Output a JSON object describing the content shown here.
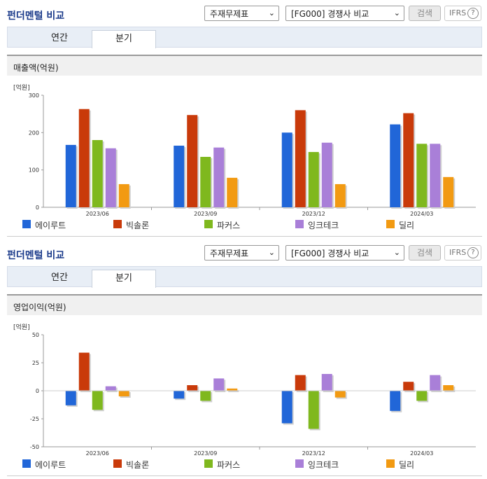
{
  "header": {
    "title": "펀더멘털 비교",
    "select1": "주재무제표",
    "select2": "[FG000] 경쟁사 비교",
    "search_label": "검색",
    "ifrs_label": "IFRS",
    "help": "?"
  },
  "tabs": [
    "연간",
    "분기"
  ],
  "active_tab": 1,
  "colors": [
    "#2166d8",
    "#c93a0a",
    "#7fb81e",
    "#a97fd8",
    "#f29a12"
  ],
  "chart_data": [
    {
      "type": "bar",
      "title": "매출액(억원)",
      "unit": "[억원]",
      "categories": [
        "2023/06",
        "2023/09",
        "2023/12",
        "2024/03"
      ],
      "ylim": [
        0,
        300
      ],
      "yticks": [
        0,
        100,
        200,
        300
      ],
      "series": [
        {
          "name": "에이루트",
          "values": [
            167,
            165,
            200,
            222
          ]
        },
        {
          "name": "빅솔론",
          "values": [
            263,
            247,
            260,
            252
          ]
        },
        {
          "name": "파커스",
          "values": [
            180,
            135,
            148,
            170
          ]
        },
        {
          "name": "잉크테크",
          "values": [
            158,
            160,
            173,
            170
          ]
        },
        {
          "name": "딜리",
          "values": [
            62,
            79,
            62,
            81
          ]
        }
      ]
    },
    {
      "type": "bar",
      "title": "영업이익(억원)",
      "unit": "[억원]",
      "categories": [
        "2023/06",
        "2023/09",
        "2023/12",
        "2024/03"
      ],
      "ylim": [
        -50,
        50
      ],
      "yticks": [
        50,
        25,
        0,
        -25,
        -50
      ],
      "series": [
        {
          "name": "에이루트",
          "values": [
            -13,
            -7,
            -29,
            -18
          ]
        },
        {
          "name": "빅솔론",
          "values": [
            34,
            5,
            14,
            8
          ]
        },
        {
          "name": "파커스",
          "values": [
            -17,
            -9,
            -34,
            -9
          ]
        },
        {
          "name": "잉크테크",
          "values": [
            4,
            11,
            15,
            14
          ]
        },
        {
          "name": "딜리",
          "values": [
            -5,
            2,
            -6,
            5
          ]
        }
      ]
    }
  ]
}
